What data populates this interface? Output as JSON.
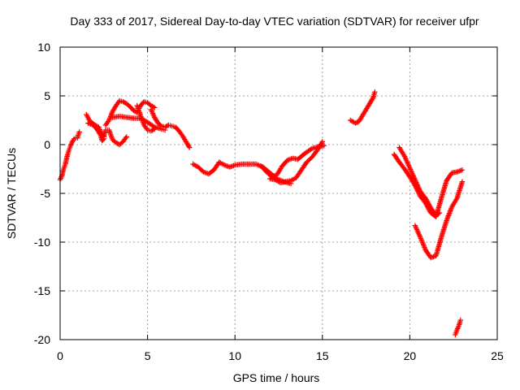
{
  "chart_data": {
    "type": "scatter",
    "title": "Day 333 of 2017, Sidereal Day-to-day VTEC variation (SDTVAR) for receiver ufpr",
    "xlabel": "GPS time / hours",
    "ylabel": "SDTVAR / TECUs",
    "xlim": [
      0,
      25
    ],
    "ylim": [
      -20,
      10
    ],
    "xticks": [
      0,
      5,
      10,
      15,
      20,
      25
    ],
    "yticks": [
      -20,
      -15,
      -10,
      -5,
      0,
      5,
      10
    ],
    "grid": true,
    "marker": "plus",
    "color": "#ff0000",
    "series": [
      {
        "x": [
          0.0,
          0.1,
          0.2,
          0.3,
          0.4,
          0.5,
          0.6,
          0.7,
          0.8,
          0.9,
          1.0,
          1.1
        ],
        "y": [
          -3.6,
          -3.2,
          -2.5,
          -2.0,
          -1.2,
          -0.6,
          -0.1,
          0.3,
          0.6,
          0.7,
          0.7,
          1.3
        ]
      },
      {
        "x": [
          1.5,
          1.7,
          2.0,
          2.2,
          2.4,
          2.5,
          2.6,
          2.8,
          3.0,
          3.2,
          3.4,
          3.6,
          3.8
        ],
        "y": [
          3.1,
          2.4,
          2.0,
          1.8,
          1.0,
          0.8,
          1.5,
          1.5,
          0.5,
          0.2,
          0.0,
          0.3,
          0.8
        ]
      },
      {
        "x": [
          1.6,
          1.9,
          2.1,
          2.3,
          2.4,
          2.5
        ],
        "y": [
          2.2,
          2.0,
          1.6,
          1.0,
          0.4,
          0.6
        ]
      },
      {
        "x": [
          2.6,
          2.8,
          3.0,
          3.2,
          3.4,
          3.6,
          3.8,
          4.0,
          4.2,
          4.4,
          4.6,
          4.8,
          5.0,
          5.2,
          5.4
        ],
        "y": [
          2.0,
          2.5,
          3.4,
          4.0,
          4.5,
          4.4,
          4.2,
          3.9,
          3.5,
          3.3,
          4.0,
          4.4,
          4.3,
          4.0,
          3.8
        ]
      },
      {
        "x": [
          3.0,
          3.4,
          3.8,
          4.2,
          4.6,
          5.0,
          5.4,
          5.8,
          6.0
        ],
        "y": [
          2.8,
          2.9,
          2.8,
          2.7,
          2.7,
          2.3,
          1.8,
          1.6,
          1.5
        ]
      },
      {
        "x": [
          4.4,
          4.6,
          4.8,
          5.0,
          5.2,
          5.4
        ],
        "y": [
          4.0,
          3.0,
          2.0,
          1.5,
          1.4,
          1.6
        ]
      },
      {
        "x": [
          5.2,
          5.4,
          5.6,
          5.8,
          6.0,
          6.2,
          6.4,
          6.6,
          6.8,
          7.0,
          7.2,
          7.4
        ],
        "y": [
          3.6,
          2.8,
          2.2,
          1.9,
          1.8,
          2.0,
          1.9,
          1.8,
          1.4,
          0.9,
          0.3,
          -0.3
        ]
      },
      {
        "x": [
          7.6,
          7.9,
          8.2,
          8.5,
          8.8,
          9.1,
          9.4,
          9.7,
          10.0,
          10.4,
          10.8,
          11.2,
          11.6,
          12.0,
          12.4,
          12.8,
          13.2
        ],
        "y": [
          -2.0,
          -2.3,
          -2.8,
          -3.0,
          -2.6,
          -1.8,
          -2.1,
          -2.3,
          -2.1,
          -2.0,
          -2.0,
          -2.0,
          -2.3,
          -2.9,
          -3.5,
          -3.8,
          -4.0
        ]
      },
      {
        "x": [
          11.5,
          11.8,
          12.1,
          12.4,
          12.7,
          13.0,
          13.3,
          13.6,
          14.0,
          14.4,
          14.8,
          15.1
        ],
        "y": [
          -2.2,
          -2.8,
          -3.3,
          -3.1,
          -2.2,
          -1.6,
          -1.4,
          -1.5,
          -0.9,
          -0.4,
          -0.2,
          -0.1
        ]
      },
      {
        "x": [
          12.0,
          12.3,
          12.6,
          12.9,
          13.2,
          13.5,
          13.8,
          14.1,
          14.4,
          14.7,
          15.0
        ],
        "y": [
          -3.5,
          -3.6,
          -3.9,
          -3.8,
          -3.7,
          -3.4,
          -2.6,
          -1.8,
          -1.3,
          -0.6,
          0.3
        ]
      },
      {
        "x": [
          16.6,
          16.9,
          17.1,
          17.3,
          17.5,
          17.7,
          17.9,
          18.0
        ],
        "y": [
          2.5,
          2.2,
          2.4,
          3.0,
          3.6,
          4.2,
          4.8,
          5.4
        ]
      },
      {
        "x": [
          19.1,
          19.4,
          19.7,
          20.0,
          20.3,
          20.6,
          20.9,
          21.2,
          21.5,
          21.8,
          22.1,
          22.4,
          22.7,
          23.0
        ],
        "y": [
          -1.0,
          -1.8,
          -2.5,
          -3.3,
          -4.2,
          -5.3,
          -6.0,
          -7.0,
          -7.4,
          -5.5,
          -3.7,
          -2.9,
          -2.8,
          -2.6
        ]
      },
      {
        "x": [
          19.4,
          19.7,
          20.0,
          20.3,
          20.6,
          20.9,
          21.2,
          21.5,
          21.7
        ],
        "y": [
          -0.3,
          -1.2,
          -2.4,
          -3.6,
          -4.8,
          -5.5,
          -6.5,
          -7.2,
          -7.0
        ]
      },
      {
        "x": [
          20.3,
          20.6,
          20.9,
          21.2,
          21.5,
          21.8,
          22.1,
          22.4,
          22.7,
          23.0
        ],
        "y": [
          -8.3,
          -9.5,
          -10.8,
          -11.6,
          -11.4,
          -9.5,
          -7.8,
          -6.4,
          -5.5,
          -3.8
        ]
      },
      {
        "x": [
          22.6,
          22.7,
          22.8,
          22.9
        ],
        "y": [
          -19.5,
          -19.0,
          -18.6,
          -18.0
        ]
      }
    ]
  }
}
